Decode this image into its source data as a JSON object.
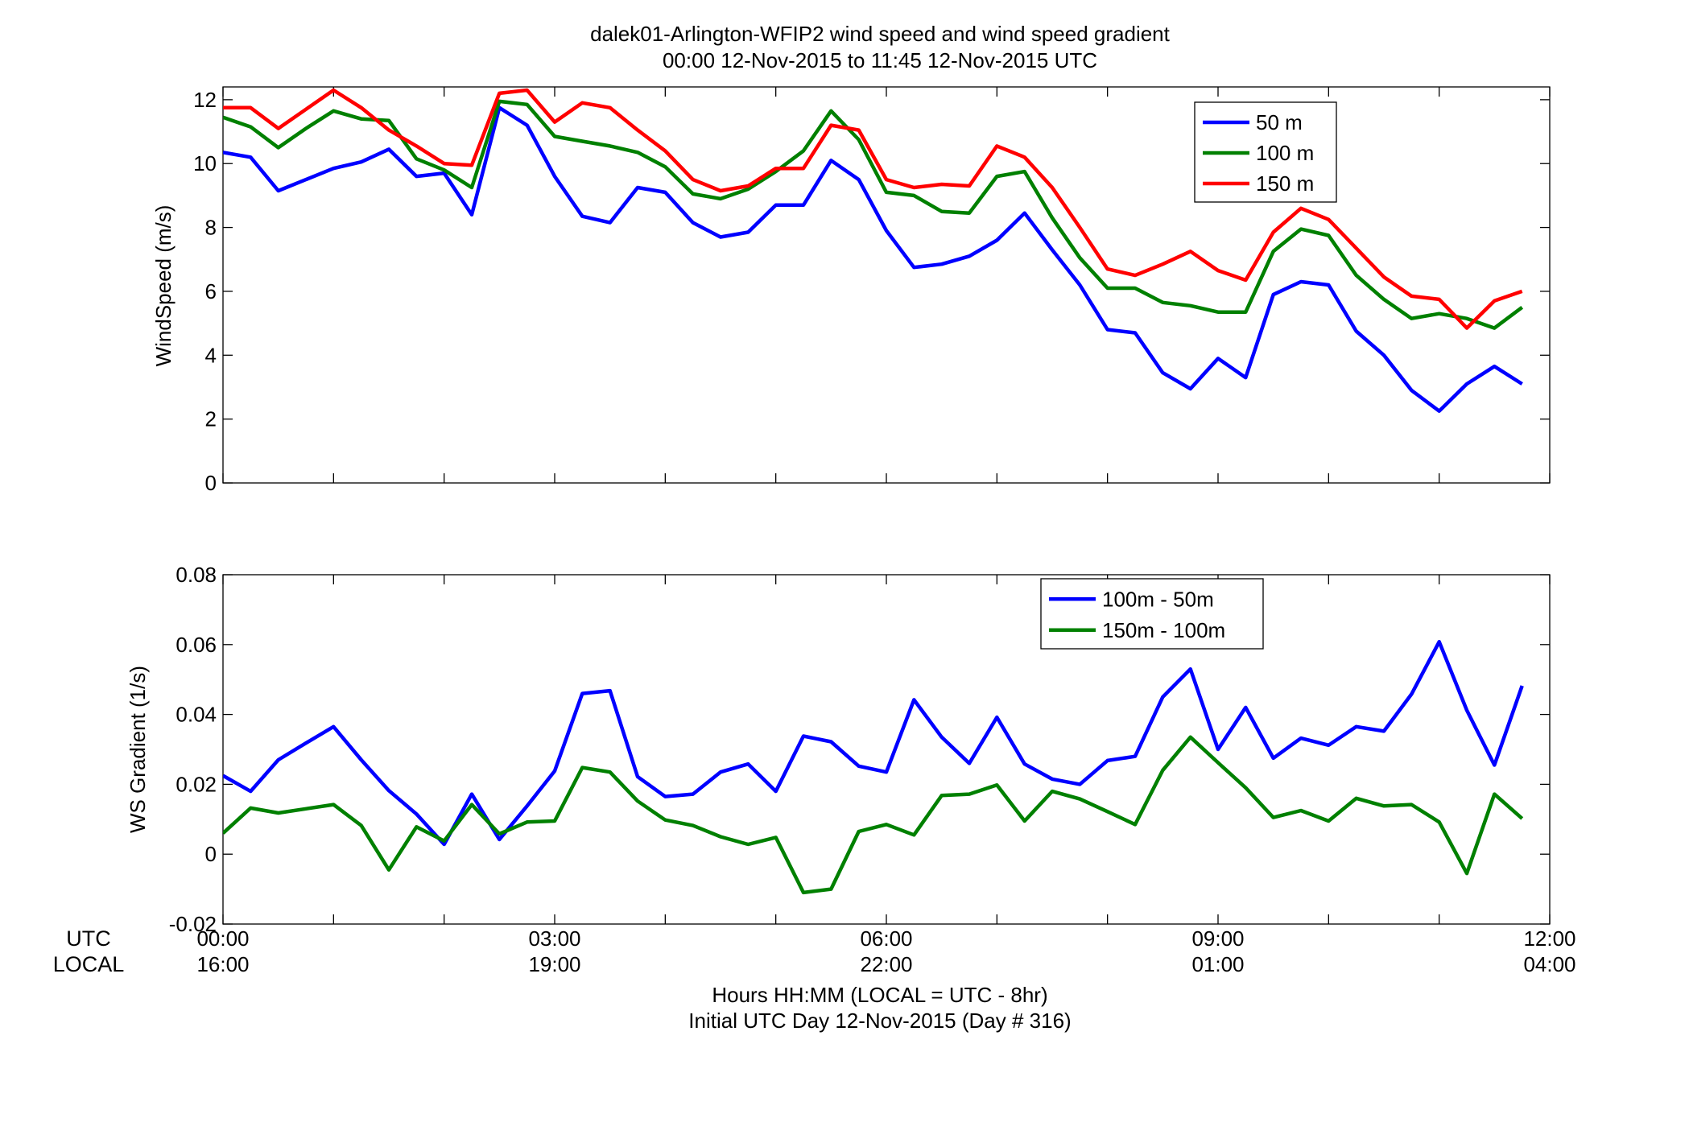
{
  "figure": {
    "title_line1": "dalek01-Arlington-WFIP2  wind speed and wind speed gradient",
    "title_line2": "00:00 12-Nov-2015 to 11:45 12-Nov-2015  UTC",
    "row_label_utc": "UTC",
    "row_label_local": "LOCAL",
    "xlabel_line1": "Hours HH:MM  (LOCAL = UTC - 8hr)",
    "xlabel_line2": "Initial UTC Day 12-Nov-2015 (Day # 316)",
    "x_ticks_utc": [
      "00:00",
      "03:00",
      "06:00",
      "09:00",
      "12:00"
    ],
    "x_ticks_local": [
      "16:00",
      "19:00",
      "22:00",
      "01:00",
      "04:00"
    ]
  },
  "colors": {
    "blue": "#0000ff",
    "green": "#008000",
    "red": "#ff0000"
  },
  "chart_data": [
    {
      "type": "line",
      "ylabel": "WindSpeed (m/s)",
      "xlabel": "Hours HH:MM  (LOCAL = UTC - 8hr)",
      "xlim": [
        0,
        12
      ],
      "ylim": [
        0,
        12.4
      ],
      "yticks": [
        0,
        2,
        4,
        6,
        8,
        10,
        12
      ],
      "y_tick_labels": [
        "0",
        "2",
        "4",
        "6",
        "8",
        "10",
        "12"
      ],
      "x_tick_values": [
        0,
        3,
        6,
        9,
        12
      ],
      "grid": false,
      "legend_position": "top-right",
      "x": [
        0,
        0.25,
        0.5,
        0.75,
        1,
        1.25,
        1.5,
        1.75,
        2,
        2.25,
        2.5,
        2.75,
        3,
        3.25,
        3.5,
        3.75,
        4,
        4.25,
        4.5,
        4.75,
        5,
        5.25,
        5.5,
        5.75,
        6,
        6.25,
        6.5,
        6.75,
        7,
        7.25,
        7.5,
        7.75,
        8,
        8.25,
        8.5,
        8.75,
        9,
        9.25,
        9.5,
        9.75,
        10,
        10.25,
        10.5,
        10.75,
        11,
        11.25,
        11.5,
        11.75
      ],
      "series": [
        {
          "name": "50 m",
          "color": "#0000ff",
          "values": [
            10.35,
            10.2,
            9.15,
            9.5,
            9.85,
            10.05,
            10.45,
            9.6,
            9.7,
            8.4,
            11.75,
            11.2,
            9.6,
            8.35,
            8.15,
            9.25,
            9.1,
            8.15,
            7.7,
            7.85,
            8.7,
            8.7,
            10.1,
            9.5,
            7.9,
            6.75,
            6.85,
            7.1,
            7.6,
            8.45,
            7.3,
            6.2,
            4.8,
            4.7,
            3.45,
            2.95,
            3.9,
            3.3,
            5.9,
            6.3,
            6.2,
            4.75,
            4.0,
            2.9,
            2.25,
            3.1,
            3.65,
            3.1
          ]
        },
        {
          "name": "100 m",
          "color": "#008000",
          "values": [
            11.45,
            11.15,
            10.5,
            11.1,
            11.65,
            11.4,
            11.35,
            10.15,
            9.8,
            9.25,
            11.95,
            11.85,
            10.85,
            10.7,
            10.55,
            10.35,
            9.9,
            9.05,
            8.9,
            9.2,
            9.75,
            10.4,
            11.65,
            10.75,
            9.1,
            9.0,
            8.5,
            8.45,
            9.6,
            9.75,
            8.3,
            7.05,
            6.1,
            6.1,
            5.65,
            5.55,
            5.35,
            5.35,
            7.25,
            7.95,
            7.75,
            6.5,
            5.75,
            5.15,
            5.3,
            5.15,
            4.85,
            5.5
          ]
        },
        {
          "name": "150 m",
          "color": "#ff0000",
          "values": [
            11.75,
            11.75,
            11.1,
            11.7,
            12.3,
            11.75,
            11.05,
            10.55,
            10.0,
            9.95,
            12.2,
            12.3,
            11.3,
            11.9,
            11.75,
            11.05,
            10.4,
            9.5,
            9.15,
            9.3,
            9.85,
            9.85,
            11.2,
            11.05,
            9.5,
            9.25,
            9.35,
            9.3,
            10.55,
            10.2,
            9.25,
            8.0,
            6.7,
            6.5,
            6.85,
            7.25,
            6.65,
            6.35,
            7.85,
            8.6,
            8.25,
            7.35,
            6.45,
            5.85,
            5.75,
            4.85,
            5.7,
            6.0
          ]
        }
      ]
    },
    {
      "type": "line",
      "ylabel": "WS Gradient (1/s)",
      "xlabel": "Hours HH:MM  (LOCAL = UTC - 8hr)",
      "xlim": [
        0,
        12
      ],
      "ylim": [
        -0.02,
        0.08
      ],
      "yticks": [
        -0.02,
        0,
        0.02,
        0.04,
        0.06,
        0.08
      ],
      "y_tick_labels": [
        "-0.02",
        "0",
        "0.02",
        "0.04",
        "0.06",
        "0.08"
      ],
      "x_tick_values": [
        0,
        3,
        6,
        9,
        12
      ],
      "grid": false,
      "legend_position": "top-right",
      "x": [
        0,
        0.25,
        0.5,
        0.75,
        1,
        1.25,
        1.5,
        1.75,
        2,
        2.25,
        2.5,
        2.75,
        3,
        3.25,
        3.5,
        3.75,
        4,
        4.25,
        4.5,
        4.75,
        5,
        5.25,
        5.5,
        5.75,
        6,
        6.25,
        6.5,
        6.75,
        7,
        7.25,
        7.5,
        7.75,
        8,
        8.25,
        8.5,
        8.75,
        9,
        9.25,
        9.5,
        9.75,
        10,
        10.25,
        10.5,
        10.75,
        11,
        11.25,
        11.5,
        11.75
      ],
      "series": [
        {
          "name": "100m - 50m",
          "color": "#0000ff",
          "values": [
            0.0225,
            0.018,
            0.027,
            0.0318,
            0.0365,
            0.027,
            0.0182,
            0.0115,
            0.0028,
            0.0172,
            0.0042,
            0.0138,
            0.0238,
            0.046,
            0.0468,
            0.0222,
            0.0165,
            0.0172,
            0.0235,
            0.0258,
            0.018,
            0.0338,
            0.0322,
            0.0252,
            0.0235,
            0.0442,
            0.0335,
            0.026,
            0.0392,
            0.0258,
            0.0215,
            0.02,
            0.0268,
            0.028,
            0.045,
            0.053,
            0.03,
            0.042,
            0.0275,
            0.0332,
            0.0312,
            0.0365,
            0.0352,
            0.0458,
            0.0608,
            0.0412,
            0.0255,
            0.0482
          ]
        },
        {
          "name": "150m - 100m",
          "color": "#008000",
          "values": [
            0.006,
            0.0132,
            0.0118,
            0.013,
            0.0142,
            0.0082,
            -0.0045,
            0.0078,
            0.0038,
            0.0142,
            0.0058,
            0.0092,
            0.0095,
            0.0248,
            0.0235,
            0.0152,
            0.0098,
            0.0082,
            0.005,
            0.0028,
            0.0048,
            -0.011,
            -0.01,
            0.0065,
            0.0085,
            0.0055,
            0.0168,
            0.0172,
            0.0198,
            0.0095,
            0.018,
            0.0158,
            0.0122,
            0.0085,
            0.024,
            0.0335,
            0.0262,
            0.019,
            0.0105,
            0.0125,
            0.0095,
            0.016,
            0.0138,
            0.0142,
            0.0092,
            -0.0055,
            0.0172,
            0.0102
          ]
        }
      ]
    }
  ]
}
